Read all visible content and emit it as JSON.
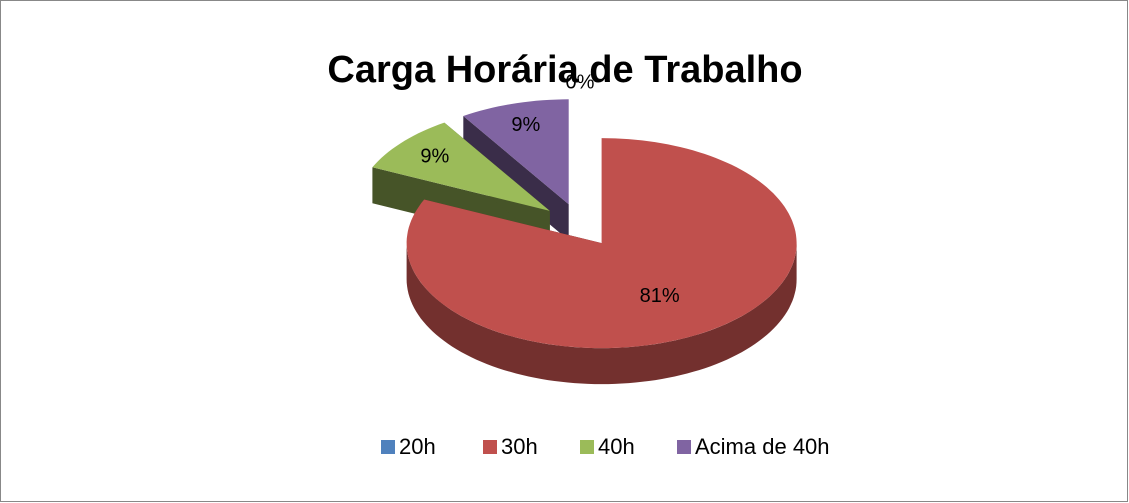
{
  "chart_data": {
    "type": "pie3d",
    "title": "Carga Horária de Trabalho",
    "categories": [
      "20h",
      "30h",
      "40h",
      "Acima de 40h"
    ],
    "values": [
      0,
      81,
      9,
      9
    ],
    "value_labels": [
      "0%",
      "81%",
      "9%",
      "9%"
    ],
    "colors": [
      "#4f81bd",
      "#c0504d",
      "#9bbb59",
      "#8064a2"
    ],
    "legend": "bottom"
  }
}
